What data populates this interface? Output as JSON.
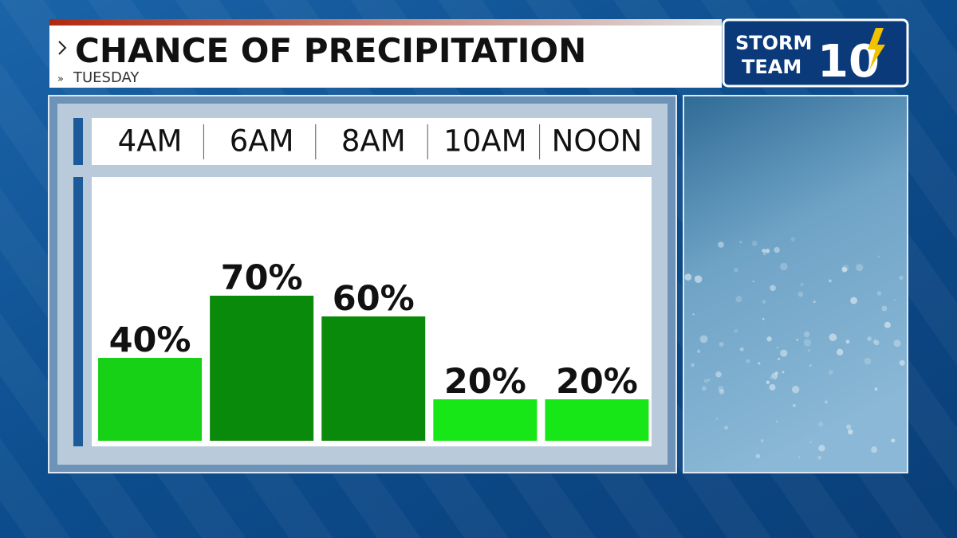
{
  "chart_data": {
    "type": "bar",
    "title": "CHANCE OF PRECIPITATION",
    "subtitle": "TUESDAY",
    "categories": [
      "4AM",
      "6AM",
      "8AM",
      "10AM",
      "NOON"
    ],
    "values": [
      40,
      70,
      60,
      20,
      20
    ],
    "value_labels": [
      "40%",
      "70%",
      "60%",
      "20%",
      "20%"
    ],
    "colors": [
      "#17d117",
      "#0a8a0a",
      "#0a8a0a",
      "#17e617",
      "#17e617"
    ]
  },
  "logo": {
    "line1": "STORM",
    "line2": "TEAM",
    "number": "10"
  }
}
